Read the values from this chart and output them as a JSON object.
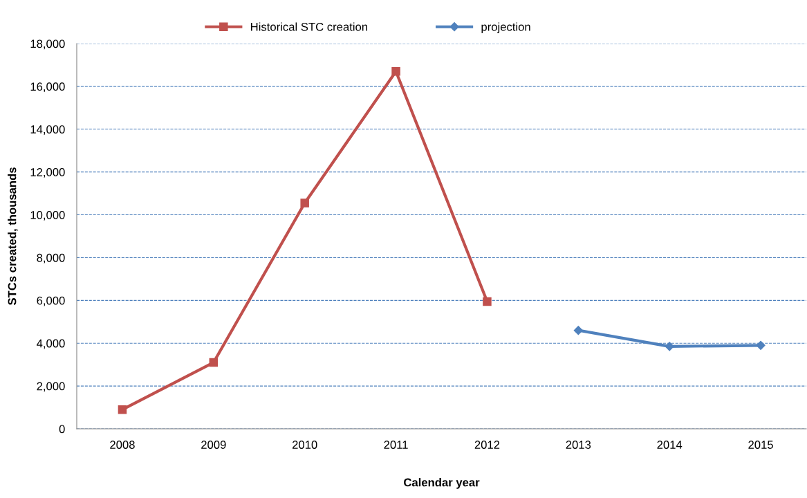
{
  "chart_data": {
    "type": "line",
    "xlabel": "Calendar year",
    "ylabel": "STCs created, thousands",
    "categories": [
      "2008",
      "2009",
      "2010",
      "2011",
      "2012",
      "2013",
      "2014",
      "2015"
    ],
    "series": [
      {
        "name": "Historical STC creation",
        "color": "#c0504d",
        "marker": "square",
        "values": [
          900,
          3100,
          10550,
          16700,
          5950,
          null,
          null,
          null
        ]
      },
      {
        "name": "projection",
        "color": "#4f81bd",
        "marker": "diamond",
        "values": [
          null,
          null,
          null,
          null,
          null,
          4600,
          3850,
          3900
        ]
      }
    ],
    "ylim": [
      0,
      18000
    ],
    "yticks": [
      {
        "value": 0,
        "label": "0"
      },
      {
        "value": 2000,
        "label": "2,000"
      },
      {
        "value": 4000,
        "label": "4,000"
      },
      {
        "value": 6000,
        "label": "6,000"
      },
      {
        "value": 8000,
        "label": "8,000"
      },
      {
        "value": 10000,
        "label": "10,000"
      },
      {
        "value": 12000,
        "label": "12,000"
      },
      {
        "value": 14000,
        "label": "14,000"
      },
      {
        "value": 16000,
        "label": "16,000"
      },
      {
        "value": 18000,
        "label": "18,000"
      }
    ],
    "grid": "y",
    "legend": "top",
    "line_style": "solid"
  }
}
